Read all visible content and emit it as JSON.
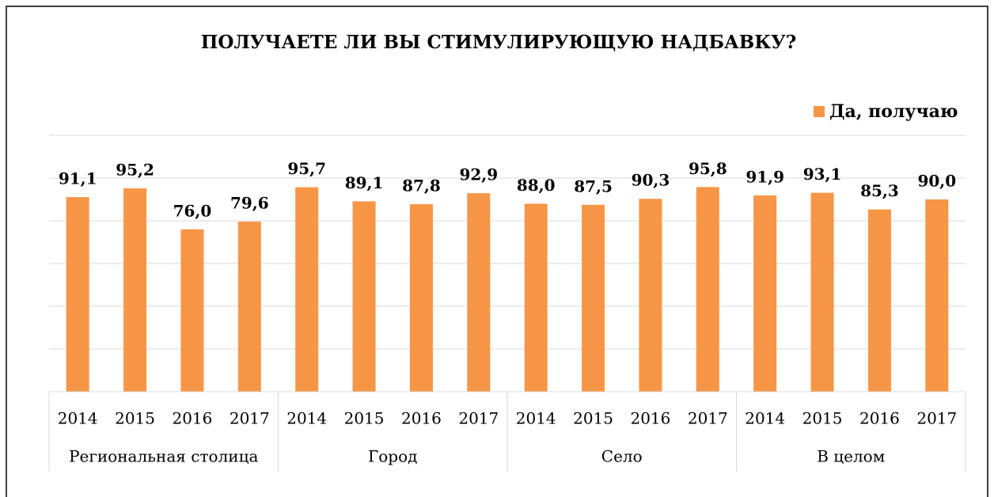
{
  "chart_data": {
    "type": "bar",
    "title": "ПОЛУЧАЕТЕ ЛИ ВЫ СТИМУЛИРУЮЩУЮ НАДБАВКУ?",
    "categories": [
      "2014",
      "2015",
      "2016",
      "2017",
      "2014",
      "2015",
      "2016",
      "2017",
      "2014",
      "2015",
      "2016",
      "2017",
      "2014",
      "2015",
      "2016",
      "2017"
    ],
    "groups": [
      "Региональная столица",
      "Город",
      "Село",
      "В целом"
    ],
    "series": [
      {
        "name": "Да, получаю",
        "color": "#f79646",
        "values": [
          91.1,
          95.2,
          76.0,
          79.6,
          95.7,
          89.1,
          87.8,
          92.9,
          88.0,
          87.5,
          90.3,
          95.8,
          91.9,
          93.1,
          85.3,
          90.0
        ],
        "value_labels": [
          "91,1",
          "95,2",
          "76,0",
          "79,6",
          "95,7",
          "89,1",
          "87,8",
          "92,9",
          "88,0",
          "87,5",
          "90,3",
          "95,8",
          "91,9",
          "93,1",
          "85,3",
          "90,0"
        ]
      }
    ],
    "ylim": [
      0,
      120
    ],
    "yticks": [
      0,
      20,
      40,
      60,
      80,
      100,
      120
    ],
    "grid": true,
    "legend": "top-right"
  }
}
